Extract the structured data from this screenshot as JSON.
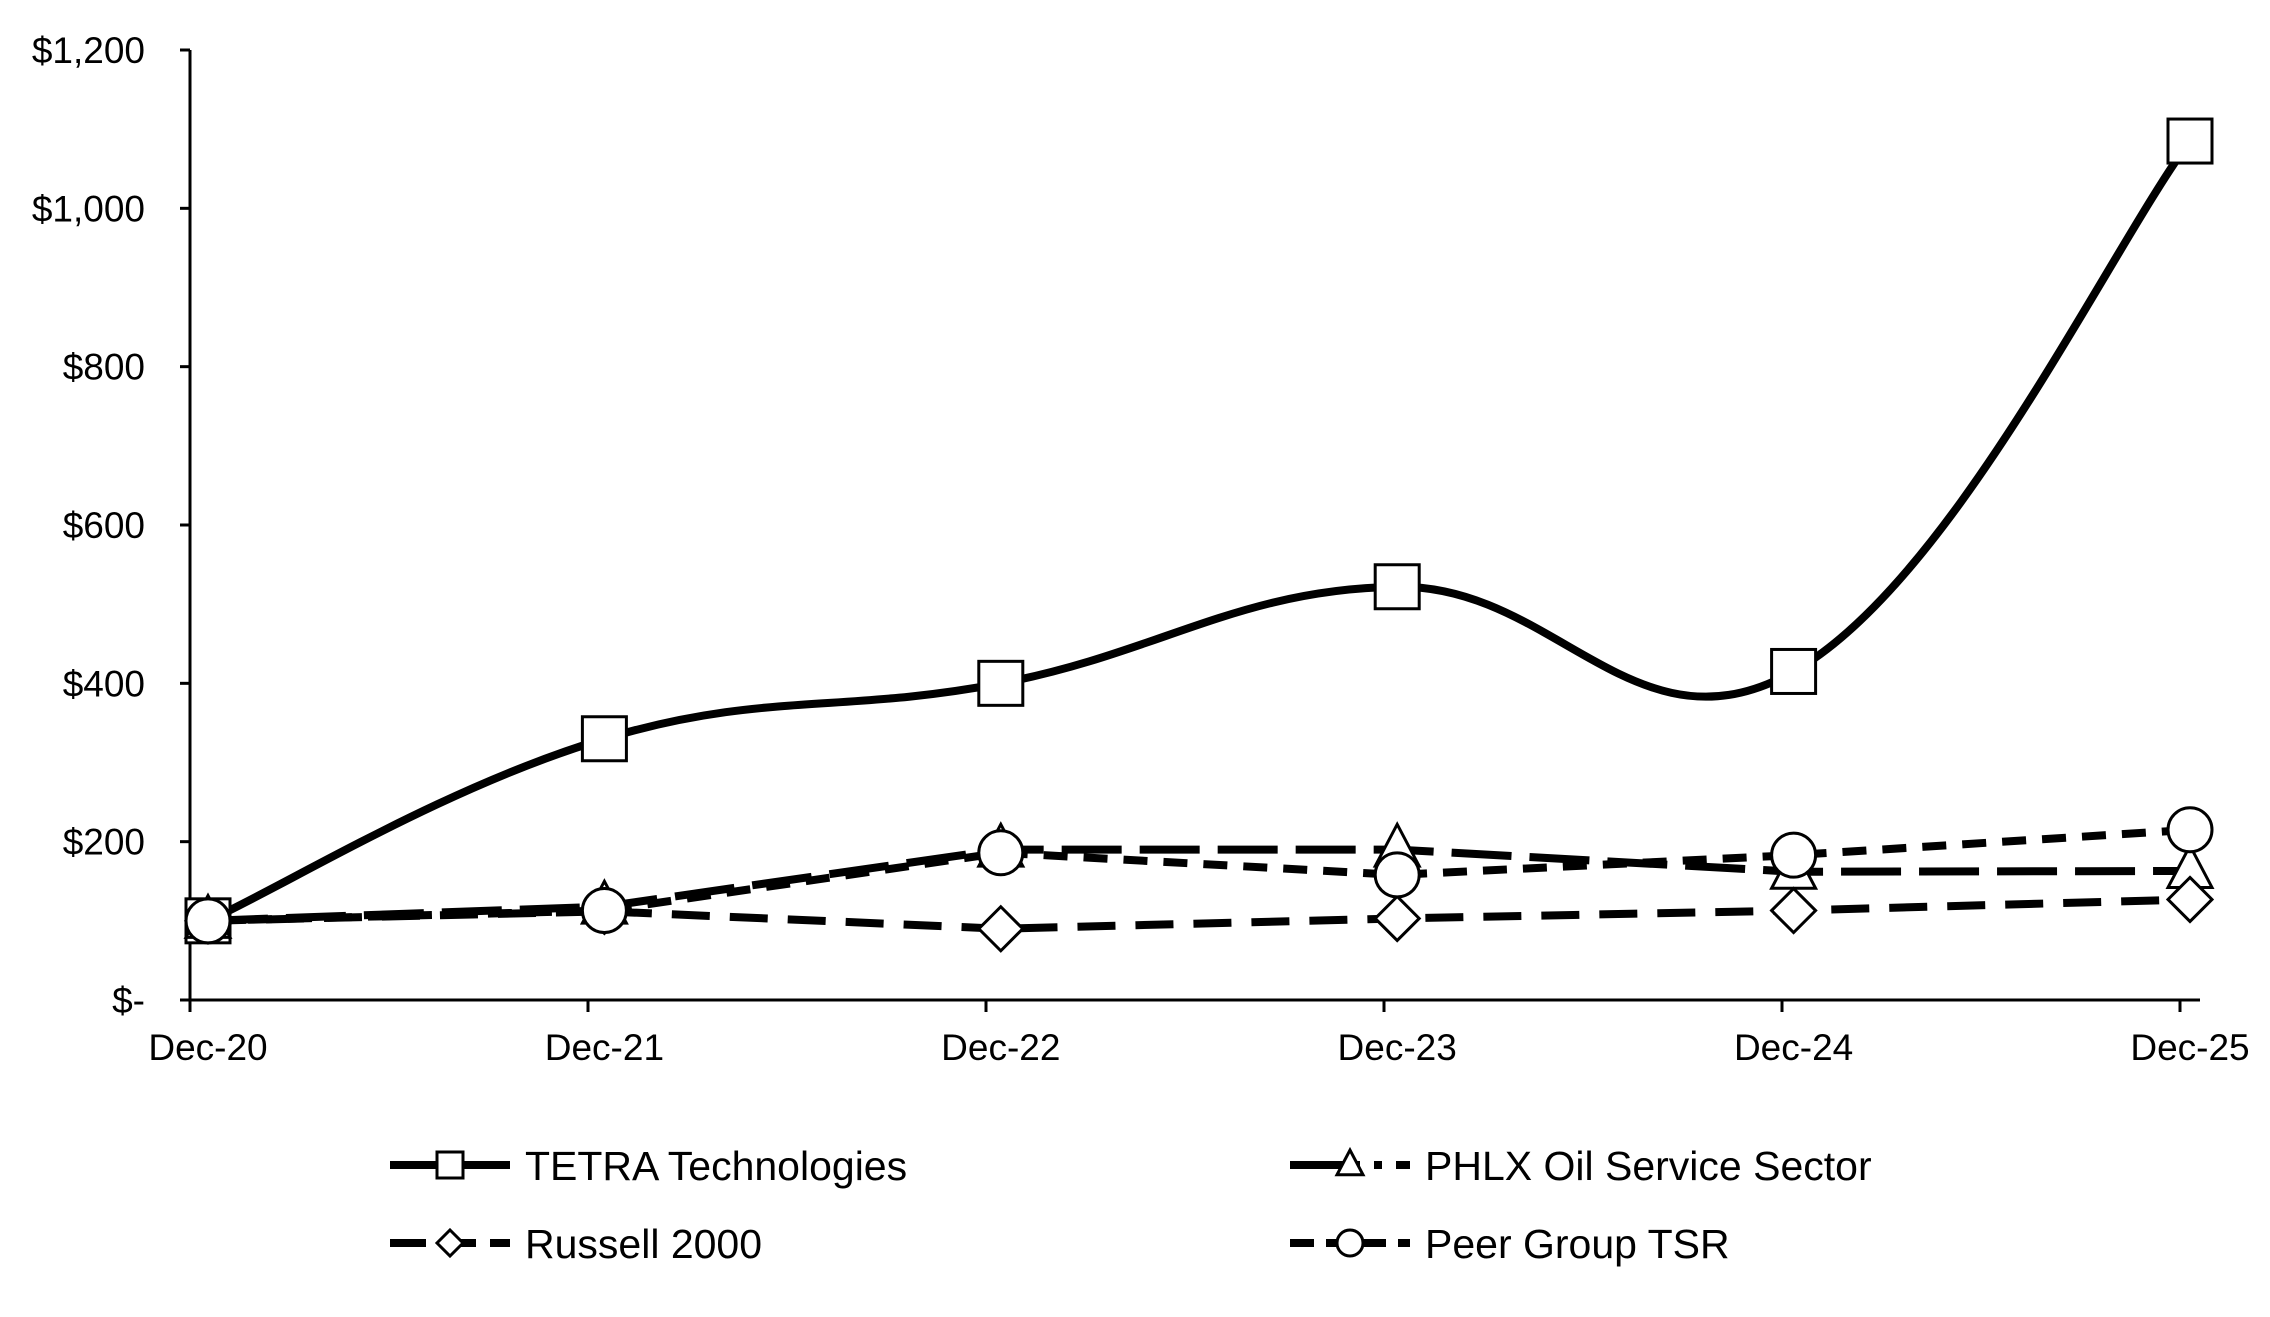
{
  "chart_data": {
    "type": "line",
    "title": "",
    "xlabel": "",
    "ylabel": "",
    "categories": [
      "Dec-20",
      "Dec-21",
      "Dec-22",
      "Dec-23",
      "Dec-24",
      "Dec-25"
    ],
    "ylim": [
      0,
      1200
    ],
    "yticks": [
      0,
      200,
      400,
      600,
      800,
      1000,
      1200
    ],
    "ytick_labels": [
      "$-",
      "$200",
      "$400",
      "$600",
      "$800",
      "$1,000",
      "$1,200"
    ],
    "grid": false,
    "legend_position": "bottom",
    "series": [
      {
        "name": "TETRA Technologies",
        "values": [
          100,
          330,
          400,
          522,
          415,
          1085
        ],
        "line_style": "solid",
        "marker": "square",
        "smooth": true
      },
      {
        "name": "PHLX Oil Service Sector",
        "values": [
          100,
          118,
          190,
          190,
          162,
          163
        ],
        "line_style": "long-dash",
        "marker": "triangle",
        "smooth": false
      },
      {
        "name": "Russell 2000",
        "values": [
          100,
          112,
          90,
          103,
          113,
          127
        ],
        "line_style": "dash",
        "marker": "diamond",
        "smooth": false
      },
      {
        "name": "Peer Group TSR",
        "values": [
          100,
          113,
          186,
          158,
          183,
          215
        ],
        "line_style": "short-dash",
        "marker": "circle",
        "smooth": false
      }
    ]
  }
}
